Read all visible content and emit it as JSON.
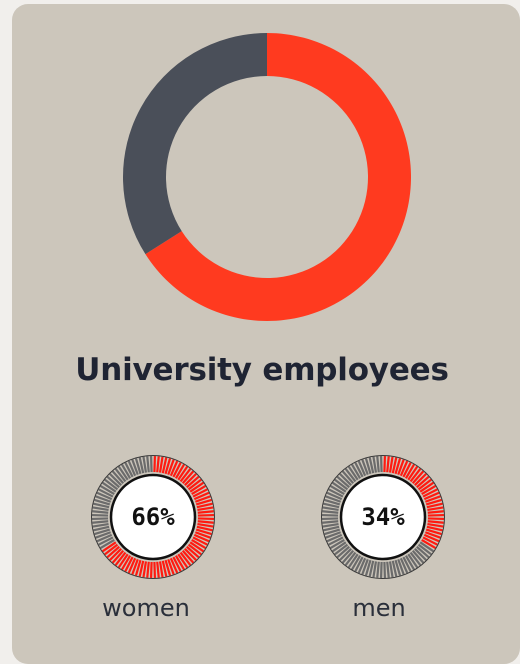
{
  "chart_data": {
    "type": "pie",
    "title": "University employees",
    "series": [
      {
        "name": "women",
        "value": 66,
        "label": "66%",
        "color": "#ff3a1f",
        "gauge_color": "#ff1a10"
      },
      {
        "name": "men",
        "value": 34,
        "label": "34%",
        "color": "#4a4f59",
        "gauge_color": "#6b6b6b"
      }
    ]
  },
  "colors": {
    "card": "#ccc6bb",
    "title": "#1f2433"
  }
}
